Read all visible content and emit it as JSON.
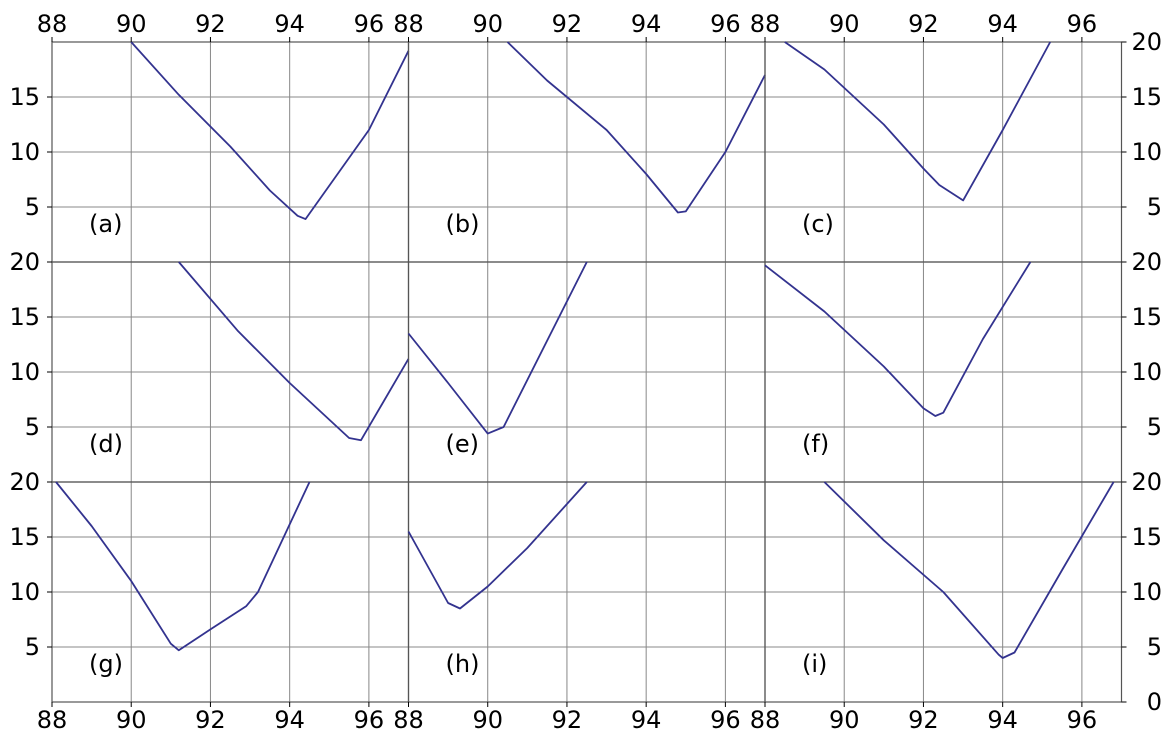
{
  "chart_data": {
    "type": "line",
    "layout": "3x3 grid",
    "line_color": "#33338f",
    "grid": true,
    "xlim": [
      88,
      97
    ],
    "ylim": [
      0,
      20
    ],
    "x_ticks": [
      88,
      90,
      92,
      94,
      96
    ],
    "y_ticks_left": [
      5,
      10,
      15,
      20
    ],
    "y_ticks_right": [
      0,
      5,
      10,
      15,
      20
    ],
    "panels": [
      {
        "label": "(a)",
        "x": [
          90,
          91.2,
          92.5,
          93.5,
          94.2,
          94.4,
          96,
          97
        ],
        "y": [
          20,
          15.2,
          10.5,
          6.5,
          4.2,
          3.9,
          12,
          19.2
        ]
      },
      {
        "label": "(b)",
        "x": [
          90.5,
          91.5,
          93,
          94,
          94.8,
          95,
          96,
          97
        ],
        "y": [
          20,
          16.5,
          12,
          8,
          4.5,
          4.6,
          10,
          17
        ]
      },
      {
        "label": "(c)",
        "x": [
          88.5,
          89.5,
          91,
          92,
          92.4,
          93,
          94,
          95.2
        ],
        "y": [
          20,
          17.5,
          12.5,
          8.5,
          7,
          5.6,
          12,
          20
        ]
      },
      {
        "label": "(d)",
        "x": [
          91.2,
          92.7,
          94,
          95.5,
          95.8,
          97
        ],
        "y": [
          20,
          13.7,
          9,
          4,
          3.8,
          11.2
        ]
      },
      {
        "label": "(e)",
        "x": [
          88,
          89,
          90,
          90.4,
          92.5
        ],
        "y": [
          13.5,
          9,
          4.4,
          5,
          20
        ]
      },
      {
        "label": "(f)",
        "x": [
          88,
          89.5,
          91,
          92,
          92.3,
          92.5,
          93.5,
          94.7
        ],
        "y": [
          19.7,
          15.5,
          10.5,
          6.7,
          6,
          6.3,
          13,
          20
        ]
      },
      {
        "label": "(g)",
        "x": [
          88.1,
          89,
          90,
          91,
          91.2,
          92,
          92.9,
          93.2,
          94.5
        ],
        "y": [
          20,
          16,
          11,
          5.3,
          4.7,
          6.6,
          8.7,
          10,
          20
        ]
      },
      {
        "label": "(h)",
        "x": [
          88,
          89,
          89.3,
          90,
          91,
          92.5
        ],
        "y": [
          15.5,
          9,
          8.5,
          10.5,
          14,
          20
        ]
      },
      {
        "label": "(i)",
        "x": [
          89.5,
          91,
          92.5,
          93.9,
          94,
          94.3,
          95.5,
          96.8
        ],
        "y": [
          20,
          14.7,
          10,
          4.3,
          4,
          4.5,
          12,
          20
        ]
      }
    ]
  }
}
